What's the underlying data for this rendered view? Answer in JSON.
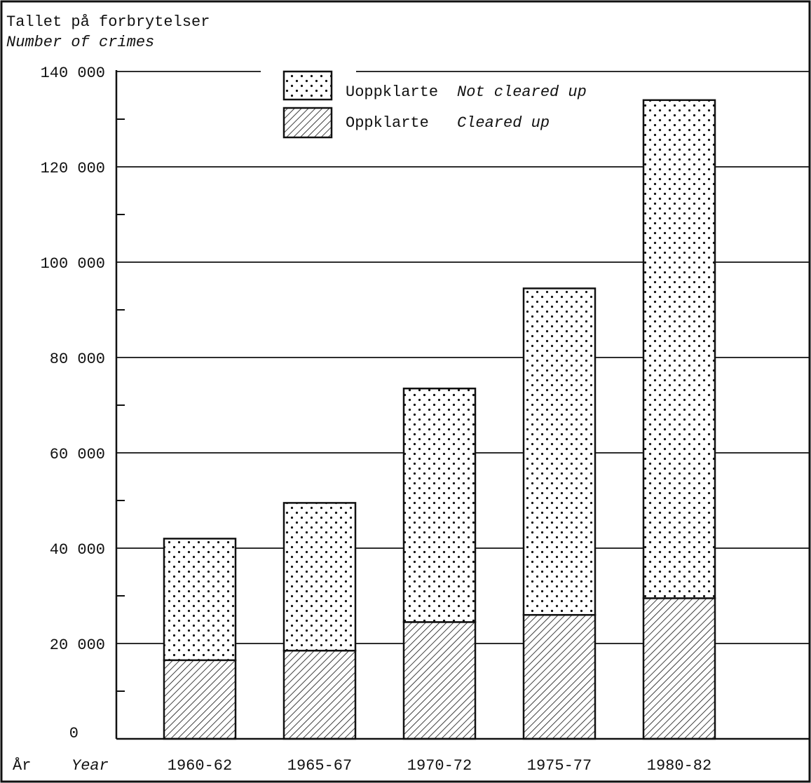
{
  "chart_data": {
    "type": "bar",
    "stacked": true,
    "ylabel_no": "Tallet på forbrytelser",
    "ylabel_en": "Number of crimes",
    "xlabel_no": "År",
    "xlabel_en": "Year",
    "ylim": [
      0,
      140000
    ],
    "y_ticks": [
      0,
      20000,
      40000,
      60000,
      80000,
      100000,
      120000,
      140000
    ],
    "y_tick_labels": [
      "0",
      "20 000",
      "40 000",
      "60 000",
      "80 000",
      "100 000",
      "120 000",
      "140 000"
    ],
    "grid": true,
    "legend_position": "top-center",
    "categories": [
      "1960-62",
      "1965-67",
      "1970-72",
      "1975-77",
      "1980-82"
    ],
    "series": [
      {
        "name_no": "Oppklarte",
        "name_en": "Cleared up",
        "pattern": "hatched",
        "values": [
          16500,
          18500,
          24500,
          26000,
          29500
        ]
      },
      {
        "name_no": "Uoppklarte",
        "name_en": "Not cleared up",
        "pattern": "dotted",
        "values": [
          25500,
          31000,
          49000,
          68500,
          104500
        ]
      }
    ]
  }
}
